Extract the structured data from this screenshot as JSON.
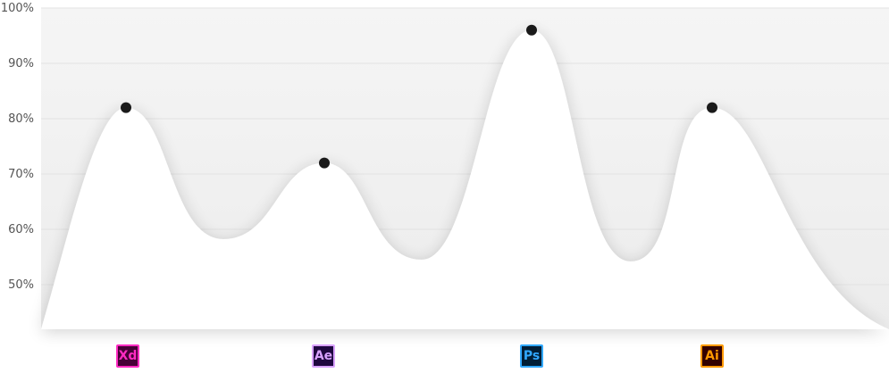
{
  "chart_data": {
    "type": "area",
    "ylim": [
      41.5,
      100
    ],
    "yticks": [
      "100%",
      "90%",
      "80%",
      "70%",
      "60%",
      "50%"
    ],
    "ytick_values": [
      100,
      90,
      80,
      70,
      60,
      50
    ],
    "grid": true,
    "points": [
      {
        "category": "Xd",
        "value": 82
      },
      {
        "category": "Ae",
        "value": 72
      },
      {
        "category": "Ps",
        "value": 96
      },
      {
        "category": "Ai",
        "value": 82
      }
    ],
    "colors": {
      "fill_area": "#f3f3f3",
      "curve_area": "#ffffff",
      "marker": "#1a1a1a",
      "grid": "#e2e2e2"
    }
  },
  "badges": [
    {
      "label": "Xd",
      "fg": "#ff2bc2",
      "bg": "#470137",
      "icon": "adobe-xd-icon"
    },
    {
      "label": "Ae",
      "fg": "#d8a1ff",
      "bg": "#1f0740",
      "icon": "adobe-ae-icon"
    },
    {
      "label": "Ps",
      "fg": "#31a8ff",
      "bg": "#001e36",
      "icon": "adobe-ps-icon"
    },
    {
      "label": "Ai",
      "fg": "#ff9a00",
      "bg": "#330000",
      "icon": "adobe-ai-icon"
    }
  ]
}
